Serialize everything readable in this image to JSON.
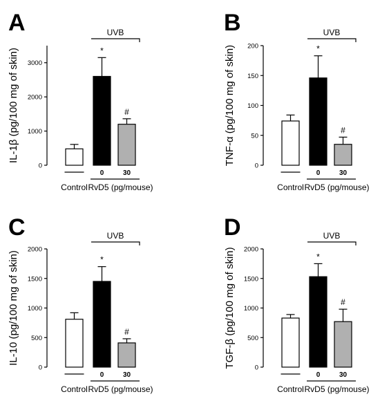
{
  "chart_data": [
    {
      "type": "bar",
      "panel": "A",
      "ylabel": "IL-1β (pg/100 mg of skin)",
      "ylim": [
        0,
        3500
      ],
      "yticks": [
        "0",
        "1000",
        "2000",
        "3000"
      ],
      "ytick_values": [
        0,
        1000,
        2000,
        3000
      ],
      "categories": [
        "Control",
        "0",
        "30"
      ],
      "values": [
        480,
        2600,
        1200
      ],
      "errors": [
        130,
        550,
        160
      ],
      "bar_colors": [
        "#ffffff",
        "#000000",
        "#b0b0b0"
      ],
      "annotations": [
        "",
        "*",
        "#"
      ],
      "group_label": "UVB",
      "xlabel_control": "Control",
      "xlabel_treatment": "RvD5 (pg/mouse)"
    },
    {
      "type": "bar",
      "panel": "B",
      "ylabel": "TNF-α (pg/100 mg of skin)",
      "ylim": [
        0,
        200
      ],
      "yticks": [
        "0",
        "50",
        "100",
        "150",
        "200"
      ],
      "ytick_values": [
        0,
        50,
        100,
        150,
        200
      ],
      "categories": [
        "Control",
        "0",
        "30"
      ],
      "values": [
        74,
        146,
        35
      ],
      "errors": [
        10,
        37,
        12
      ],
      "bar_colors": [
        "#ffffff",
        "#000000",
        "#b0b0b0"
      ],
      "annotations": [
        "",
        "*",
        "#"
      ],
      "group_label": "UVB",
      "xlabel_control": "Control",
      "xlabel_treatment": "RvD5 (pg/mouse)"
    },
    {
      "type": "bar",
      "panel": "C",
      "ylabel": "IL-10 (pg/100 mg of skin)",
      "ylim": [
        0,
        2000
      ],
      "yticks": [
        "0",
        "500",
        "1000",
        "1500",
        "2000"
      ],
      "ytick_values": [
        0,
        500,
        1000,
        1500,
        2000
      ],
      "categories": [
        "Control",
        "0",
        "30"
      ],
      "values": [
        810,
        1450,
        410
      ],
      "errors": [
        110,
        250,
        70
      ],
      "bar_colors": [
        "#ffffff",
        "#000000",
        "#b0b0b0"
      ],
      "annotations": [
        "",
        "*",
        "#"
      ],
      "group_label": "UVB",
      "xlabel_control": "Control",
      "xlabel_treatment": "RvD5 (pg/mouse)"
    },
    {
      "type": "bar",
      "panel": "D",
      "ylabel": "TGF-β (pg/100 mg of skin)",
      "ylim": [
        0,
        2000
      ],
      "yticks": [
        "0",
        "500",
        "1000",
        "1500",
        "2000"
      ],
      "ytick_values": [
        0,
        500,
        1000,
        1500,
        2000
      ],
      "categories": [
        "Control",
        "0",
        "30"
      ],
      "values": [
        830,
        1530,
        770
      ],
      "errors": [
        60,
        220,
        210
      ],
      "bar_colors": [
        "#ffffff",
        "#000000",
        "#b0b0b0"
      ],
      "annotations": [
        "",
        "*",
        "#"
      ],
      "group_label": "UVB",
      "xlabel_control": "Control",
      "xlabel_treatment": "RvD5 (pg/mouse)"
    }
  ]
}
